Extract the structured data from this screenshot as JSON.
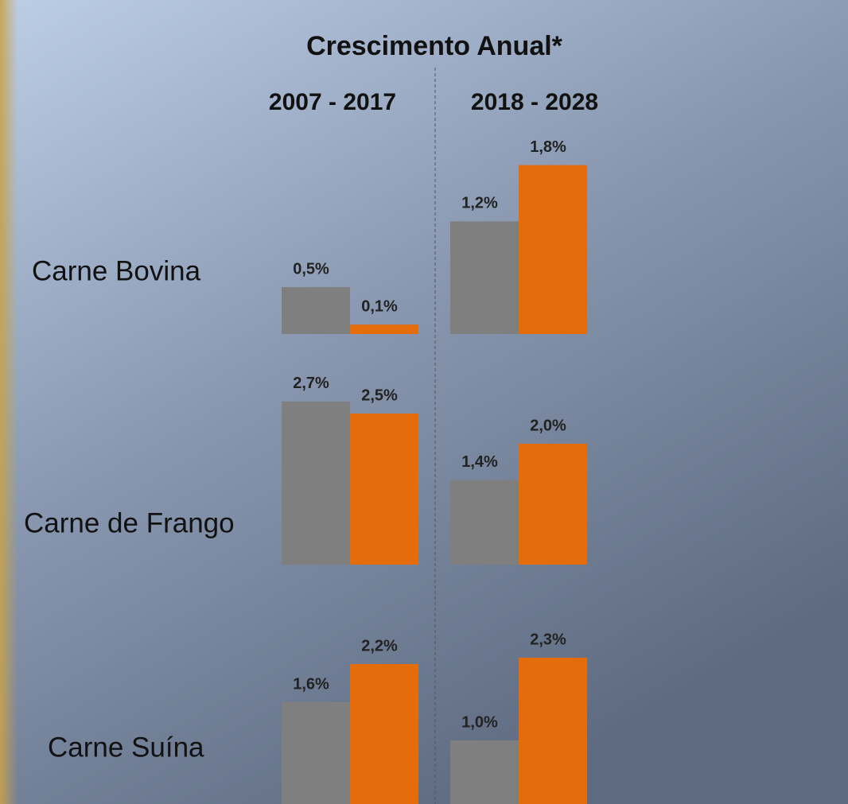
{
  "chart_data": {
    "type": "bar",
    "title": "Crescimento Anual*",
    "categories": [
      "Carne Bovina",
      "Carne de Frango",
      "Carne Suína"
    ],
    "panels": [
      {
        "subtitle": "2007 - 2017",
        "series": [
          {
            "color": "#7f7f7f",
            "values": [
              0.5,
              2.7,
              1.6
            ],
            "value_labels": [
              "0,5%",
              "2,7%",
              "1,6%"
            ]
          },
          {
            "color": "#e46c0a",
            "values": [
              0.1,
              2.5,
              2.2
            ],
            "value_labels": [
              "0,1%",
              "2,5%",
              "2,2%"
            ]
          }
        ]
      },
      {
        "subtitle": "2018 - 2028",
        "series": [
          {
            "color": "#7f7f7f",
            "values": [
              1.2,
              1.4,
              1.0
            ],
            "value_labels": [
              "1,2%",
              "1,4%",
              "1,0%"
            ]
          },
          {
            "color": "#e46c0a",
            "values": [
              1.8,
              2.0,
              2.3
            ],
            "value_labels": [
              "1,8%",
              "2,0%",
              "2,3%"
            ]
          }
        ]
      }
    ]
  }
}
